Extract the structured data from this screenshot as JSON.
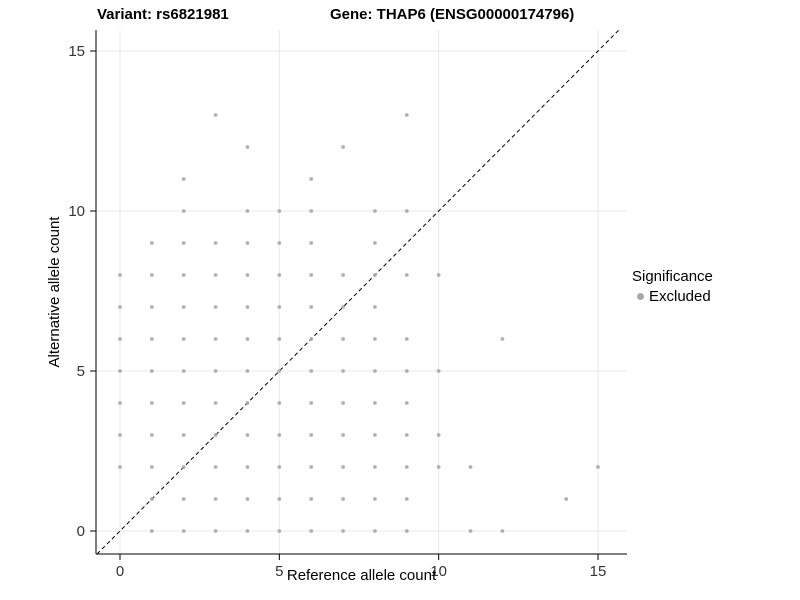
{
  "titles": {
    "variant": "Variant: rs6821981",
    "gene": "Gene: THAP6 (ENSG00000174796)"
  },
  "legend": {
    "title": "Significance",
    "items": [
      {
        "label": "Excluded",
        "color": "#a8a8a8"
      }
    ]
  },
  "colors": {
    "point": "#a8a8a8",
    "grid": "#e8e8e8",
    "axis": "#000000",
    "tick_label": "#333333",
    "reference_line": "#000000",
    "background": "#ffffff"
  },
  "chart_data": {
    "type": "scatter",
    "title": "Variant: rs6821981   Gene: THAP6 (ENSG00000174796)",
    "xlabel": "Reference allele count",
    "ylabel": "Alternative allele count",
    "xlim": [
      -0.75,
      15.75
    ],
    "ylim": [
      -0.75,
      15.75
    ],
    "xticks": [
      0,
      5,
      10,
      15
    ],
    "yticks": [
      0,
      5,
      10,
      15
    ],
    "grid": true,
    "legend_position": "right",
    "reference_line": {
      "equation": "y = x",
      "style": "dashed"
    },
    "series": [
      {
        "name": "Excluded",
        "color": "#a8a8a8",
        "points": [
          [
            1,
            0
          ],
          [
            2,
            0
          ],
          [
            3,
            0
          ],
          [
            4,
            0
          ],
          [
            5,
            0
          ],
          [
            6,
            0
          ],
          [
            7,
            0
          ],
          [
            8,
            0
          ],
          [
            9,
            0
          ],
          [
            11,
            0
          ],
          [
            12,
            0
          ],
          [
            1,
            1
          ],
          [
            2,
            1
          ],
          [
            3,
            1
          ],
          [
            4,
            1
          ],
          [
            5,
            1
          ],
          [
            6,
            1
          ],
          [
            7,
            1
          ],
          [
            8,
            1
          ],
          [
            9,
            1
          ],
          [
            14,
            1
          ],
          [
            0,
            2
          ],
          [
            1,
            2
          ],
          [
            2,
            2
          ],
          [
            3,
            2
          ],
          [
            4,
            2
          ],
          [
            5,
            2
          ],
          [
            6,
            2
          ],
          [
            7,
            2
          ],
          [
            8,
            2
          ],
          [
            9,
            2
          ],
          [
            10,
            2
          ],
          [
            11,
            2
          ],
          [
            15,
            2
          ],
          [
            0,
            3
          ],
          [
            1,
            3
          ],
          [
            2,
            3
          ],
          [
            3,
            3
          ],
          [
            4,
            3
          ],
          [
            5,
            3
          ],
          [
            6,
            3
          ],
          [
            7,
            3
          ],
          [
            8,
            3
          ],
          [
            9,
            3
          ],
          [
            10,
            3
          ],
          [
            0,
            4
          ],
          [
            1,
            4
          ],
          [
            2,
            4
          ],
          [
            3,
            4
          ],
          [
            4,
            4
          ],
          [
            5,
            4
          ],
          [
            6,
            4
          ],
          [
            7,
            4
          ],
          [
            8,
            4
          ],
          [
            9,
            4
          ],
          [
            0,
            5
          ],
          [
            1,
            5
          ],
          [
            2,
            5
          ],
          [
            3,
            5
          ],
          [
            4,
            5
          ],
          [
            5,
            5
          ],
          [
            6,
            5
          ],
          [
            7,
            5
          ],
          [
            8,
            5
          ],
          [
            9,
            5
          ],
          [
            10,
            5
          ],
          [
            0,
            6
          ],
          [
            1,
            6
          ],
          [
            2,
            6
          ],
          [
            3,
            6
          ],
          [
            4,
            6
          ],
          [
            5,
            6
          ],
          [
            6,
            6
          ],
          [
            7,
            6
          ],
          [
            8,
            6
          ],
          [
            9,
            6
          ],
          [
            12,
            6
          ],
          [
            0,
            7
          ],
          [
            1,
            7
          ],
          [
            2,
            7
          ],
          [
            3,
            7
          ],
          [
            4,
            7
          ],
          [
            5,
            7
          ],
          [
            6,
            7
          ],
          [
            7,
            7
          ],
          [
            8,
            7
          ],
          [
            0,
            8
          ],
          [
            1,
            8
          ],
          [
            2,
            8
          ],
          [
            3,
            8
          ],
          [
            4,
            8
          ],
          [
            5,
            8
          ],
          [
            6,
            8
          ],
          [
            7,
            8
          ],
          [
            8,
            8
          ],
          [
            9,
            8
          ],
          [
            10,
            8
          ],
          [
            1,
            9
          ],
          [
            2,
            9
          ],
          [
            3,
            9
          ],
          [
            4,
            9
          ],
          [
            5,
            9
          ],
          [
            6,
            9
          ],
          [
            8,
            9
          ],
          [
            2,
            10
          ],
          [
            4,
            10
          ],
          [
            5,
            10
          ],
          [
            6,
            10
          ],
          [
            8,
            10
          ],
          [
            9,
            10
          ],
          [
            2,
            11
          ],
          [
            6,
            11
          ],
          [
            4,
            12
          ],
          [
            7,
            12
          ],
          [
            3,
            13
          ],
          [
            9,
            13
          ]
        ]
      }
    ]
  }
}
